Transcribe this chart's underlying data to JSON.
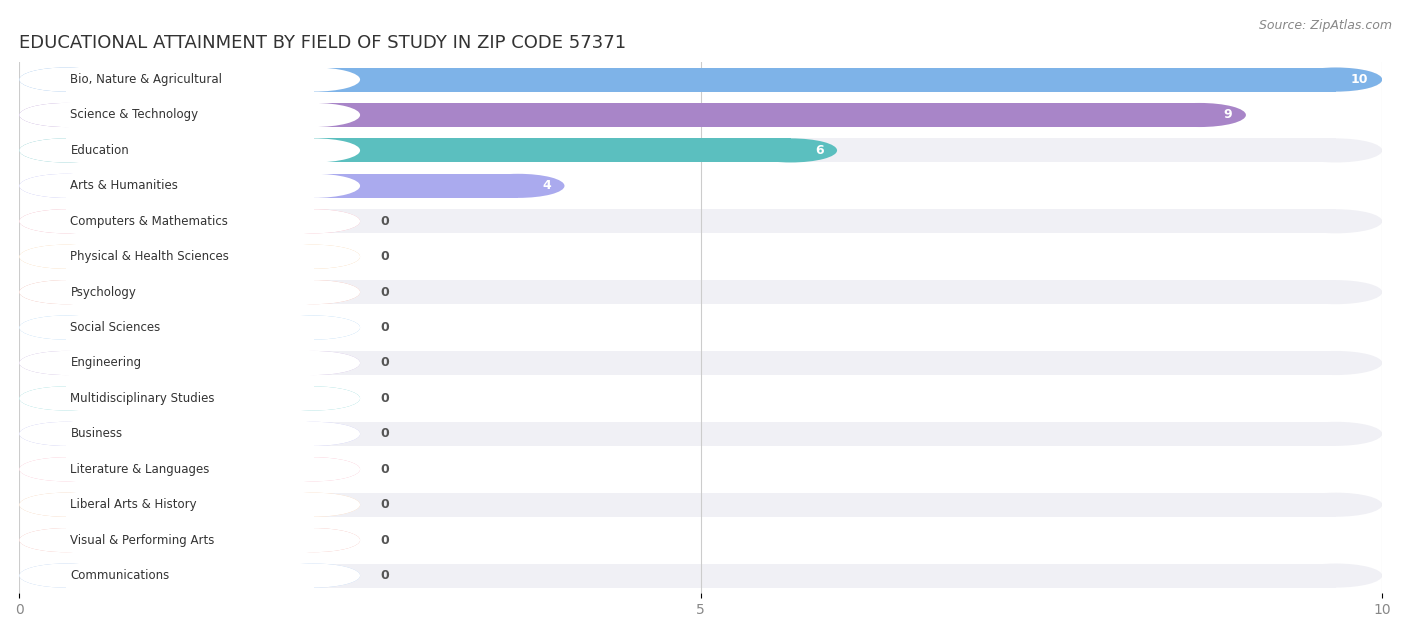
{
  "title": "EDUCATIONAL ATTAINMENT BY FIELD OF STUDY IN ZIP CODE 57371",
  "source": "Source: ZipAtlas.com",
  "categories": [
    "Bio, Nature & Agricultural",
    "Science & Technology",
    "Education",
    "Arts & Humanities",
    "Computers & Mathematics",
    "Physical & Health Sciences",
    "Psychology",
    "Social Sciences",
    "Engineering",
    "Multidisciplinary Studies",
    "Business",
    "Literature & Languages",
    "Liberal Arts & History",
    "Visual & Performing Arts",
    "Communications"
  ],
  "values": [
    10,
    9,
    6,
    4,
    0,
    0,
    0,
    0,
    0,
    0,
    0,
    0,
    0,
    0,
    0
  ],
  "bar_colors": [
    "#7EB3E8",
    "#A885C8",
    "#5BBFBF",
    "#AAAAEE",
    "#F4A0B0",
    "#F5C896",
    "#F0A898",
    "#98C8F0",
    "#C0A8D8",
    "#70CCCC",
    "#B8B8F0",
    "#F8A8BC",
    "#F8C8A0",
    "#F0A8A0",
    "#A8C8F0"
  ],
  "xlim": [
    0,
    10
  ],
  "xticks": [
    0,
    5,
    10
  ],
  "background_color": "#FFFFFF",
  "row_bg_colors": [
    "#F0F0F5",
    "#FFFFFF"
  ],
  "title_fontsize": 13,
  "bar_height": 0.68
}
